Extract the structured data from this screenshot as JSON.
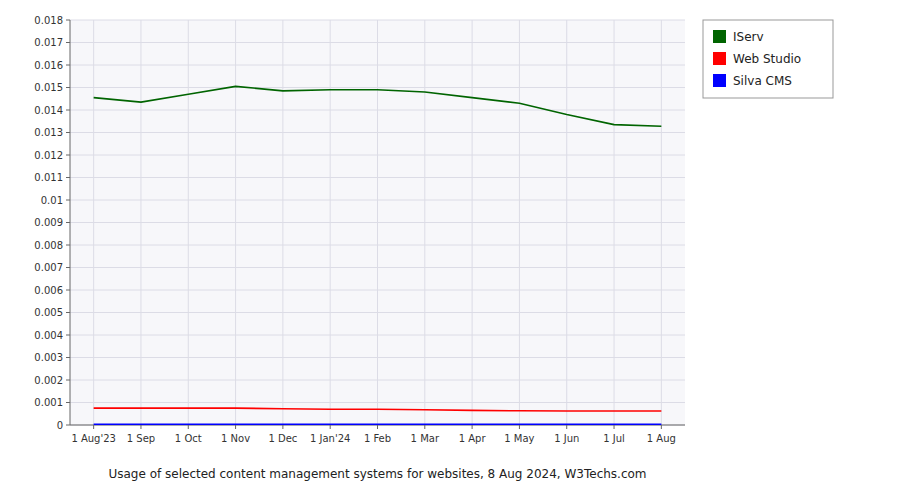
{
  "chart_data": {
    "type": "line",
    "title": "Usage of selected content management systems for websites, 8 Aug 2024, W3Techs.com",
    "categories": [
      "1 Aug'23",
      "1 Sep",
      "1 Oct",
      "1 Nov",
      "1 Dec",
      "1 Jan'24",
      "1 Feb",
      "1 Mar",
      "1 Apr",
      "1 May",
      "1 Jun",
      "1 Jul",
      "1 Aug"
    ],
    "series": [
      {
        "name": "IServ",
        "color": "#006400",
        "values": [
          0.01455,
          0.01435,
          0.0147,
          0.01505,
          0.01485,
          0.0149,
          0.0149,
          0.0148,
          0.01455,
          0.0143,
          0.0138,
          0.01335,
          0.01328
        ]
      },
      {
        "name": "Web Studio",
        "color": "#FF0000",
        "values": [
          0.00075,
          0.00075,
          0.00075,
          0.00075,
          0.00072,
          0.0007,
          0.0007,
          0.00068,
          0.00065,
          0.00063,
          0.00062,
          0.00062,
          0.00062
        ]
      },
      {
        "name": "Silva CMS",
        "color": "#0000FF",
        "values": [
          3e-05,
          3e-05,
          3e-05,
          3e-05,
          3e-05,
          3e-05,
          3e-05,
          3e-05,
          3e-05,
          3e-05,
          3e-05,
          3e-05,
          3e-05
        ]
      }
    ],
    "ylim": [
      0,
      0.018
    ],
    "yticks": [
      0,
      0.001,
      0.002,
      0.003,
      0.004,
      0.005,
      0.006,
      0.007,
      0.008,
      0.009,
      0.01,
      0.011,
      0.012,
      0.013,
      0.014,
      0.015,
      0.016,
      0.017,
      0.018
    ],
    "grid": true,
    "legend": "right"
  }
}
